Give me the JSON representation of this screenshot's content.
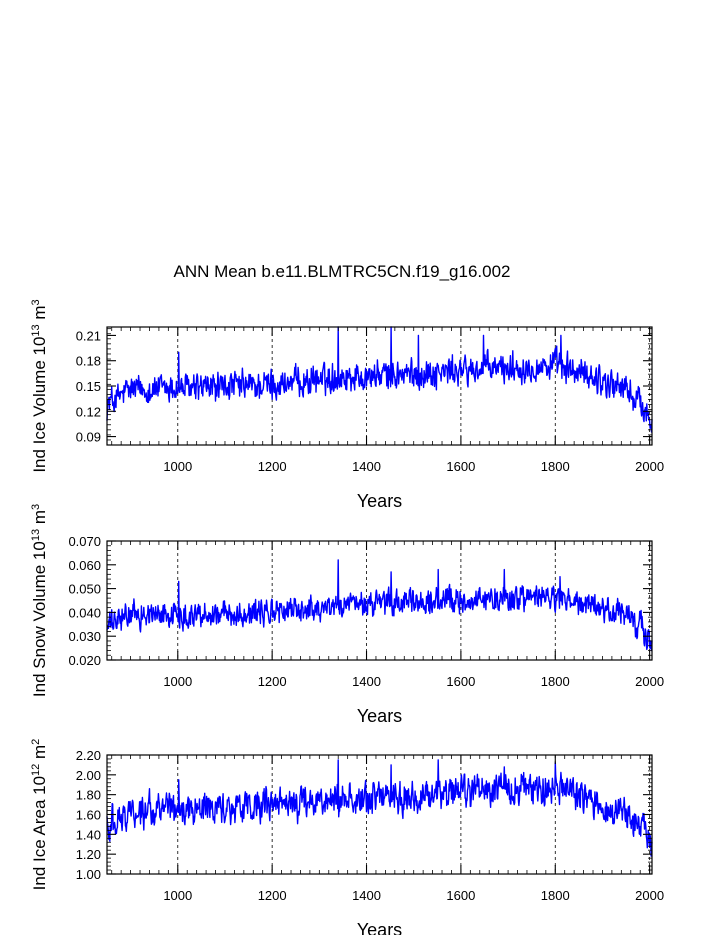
{
  "title": "ANN Mean b.e11.BLMTRC5CN.f19_g16.002",
  "colors": {
    "series": "#0000ff",
    "axis": "#000000",
    "grid": "#000000"
  },
  "chart_data": [
    {
      "type": "line",
      "title": "ANN Mean b.e11.BLMTRC5CN.f19_g16.002",
      "xlabel": "Years",
      "ylabel_main": "Ind Ice Volume 10",
      "ylabel_sup1": "13",
      "ylabel_unit": " m",
      "ylabel_sup2": "3",
      "xlim": [
        850,
        2005
      ],
      "ylim": [
        0.08,
        0.22
      ],
      "xticks": [
        1000,
        1200,
        1400,
        1600,
        1800,
        2000
      ],
      "xtick_labels": [
        "1000",
        "1200",
        "1400",
        "1600",
        "1800",
        "2000"
      ],
      "yticks": [
        0.09,
        0.12,
        0.15,
        0.18,
        0.21
      ],
      "ytick_labels": [
        "0.09",
        "0.12",
        "0.15",
        "0.18",
        "0.21"
      ],
      "grid": "vertical dashed at major x ticks",
      "series": {
        "name": "Ind Ice Volume",
        "x_start": 850,
        "x_end": 2005,
        "step": 1,
        "mean": [
          [
            850,
            0.128
          ],
          [
            900,
            0.146
          ],
          [
            1000,
            0.147
          ],
          [
            1200,
            0.151
          ],
          [
            1350,
            0.161
          ],
          [
            1500,
            0.164
          ],
          [
            1700,
            0.172
          ],
          [
            1800,
            0.174
          ],
          [
            1900,
            0.157
          ],
          [
            1950,
            0.146
          ],
          [
            1980,
            0.13
          ],
          [
            2005,
            0.105
          ]
        ],
        "amplitude": 0.018,
        "spikes": [
          [
            1002,
            0.19
          ],
          [
            1340,
            0.22
          ],
          [
            1452,
            0.22
          ],
          [
            1510,
            0.21
          ],
          [
            1648,
            0.21
          ],
          [
            1812,
            0.21
          ],
          [
            2003,
            0.104
          ]
        ]
      }
    },
    {
      "type": "line",
      "xlabel": "Years",
      "ylabel_main": "Ind Snow Volume 10",
      "ylabel_sup1": "13",
      "ylabel_unit": " m",
      "ylabel_sup2": "3",
      "xlim": [
        850,
        2005
      ],
      "ylim": [
        0.02,
        0.07
      ],
      "xticks": [
        1000,
        1200,
        1400,
        1600,
        1800,
        2000
      ],
      "xtick_labels": [
        "1000",
        "1200",
        "1400",
        "1600",
        "1800",
        "2000"
      ],
      "yticks": [
        0.02,
        0.03,
        0.04,
        0.05,
        0.06,
        0.07
      ],
      "ytick_labels": [
        "0.020",
        "0.030",
        "0.040",
        "0.050",
        "0.060",
        "0.070"
      ],
      "grid": "vertical dashed at major x ticks",
      "series": {
        "name": "Ind Snow Volume",
        "x_start": 850,
        "x_end": 2005,
        "step": 1,
        "mean": [
          [
            850,
            0.034
          ],
          [
            900,
            0.039
          ],
          [
            1000,
            0.039
          ],
          [
            1200,
            0.04
          ],
          [
            1350,
            0.043
          ],
          [
            1500,
            0.044
          ],
          [
            1700,
            0.046
          ],
          [
            1800,
            0.046
          ],
          [
            1900,
            0.041
          ],
          [
            1950,
            0.039
          ],
          [
            1980,
            0.034
          ],
          [
            2005,
            0.026
          ]
        ],
        "amplitude": 0.0055,
        "spikes": [
          [
            1002,
            0.053
          ],
          [
            1340,
            0.062
          ],
          [
            1452,
            0.057
          ],
          [
            1552,
            0.058
          ],
          [
            1692,
            0.058
          ],
          [
            1810,
            0.055
          ],
          [
            2004,
            0.024
          ]
        ]
      }
    },
    {
      "type": "line",
      "xlabel": "Years",
      "ylabel_main": "Ind Ice Area 10",
      "ylabel_sup1": "12",
      "ylabel_unit": " m",
      "ylabel_sup2": "2",
      "xlim": [
        850,
        2005
      ],
      "ylim": [
        1.0,
        2.2
      ],
      "xticks": [
        1000,
        1200,
        1400,
        1600,
        1800,
        2000
      ],
      "xtick_labels": [
        "1000",
        "1200",
        "1400",
        "1600",
        "1800",
        "2000"
      ],
      "yticks": [
        1.0,
        1.2,
        1.4,
        1.6,
        1.8,
        2.0,
        2.2
      ],
      "ytick_labels": [
        "1.00",
        "1.20",
        "1.40",
        "1.60",
        "1.80",
        "2.00",
        "2.20"
      ],
      "grid": "vertical dashed at major x ticks",
      "series": {
        "name": "Ind Ice Area",
        "x_start": 850,
        "x_end": 2005,
        "step": 1,
        "mean": [
          [
            850,
            1.5
          ],
          [
            900,
            1.64
          ],
          [
            1000,
            1.66
          ],
          [
            1200,
            1.68
          ],
          [
            1350,
            1.76
          ],
          [
            1500,
            1.78
          ],
          [
            1700,
            1.86
          ],
          [
            1800,
            1.87
          ],
          [
            1900,
            1.7
          ],
          [
            1950,
            1.62
          ],
          [
            1980,
            1.48
          ],
          [
            2005,
            1.27
          ]
        ],
        "amplitude": 0.16,
        "spikes": [
          [
            1002,
            1.95
          ],
          [
            1340,
            2.15
          ],
          [
            1452,
            2.1
          ],
          [
            1552,
            2.15
          ],
          [
            1692,
            2.08
          ],
          [
            1800,
            2.12
          ],
          [
            2004,
            1.26
          ]
        ]
      }
    }
  ]
}
